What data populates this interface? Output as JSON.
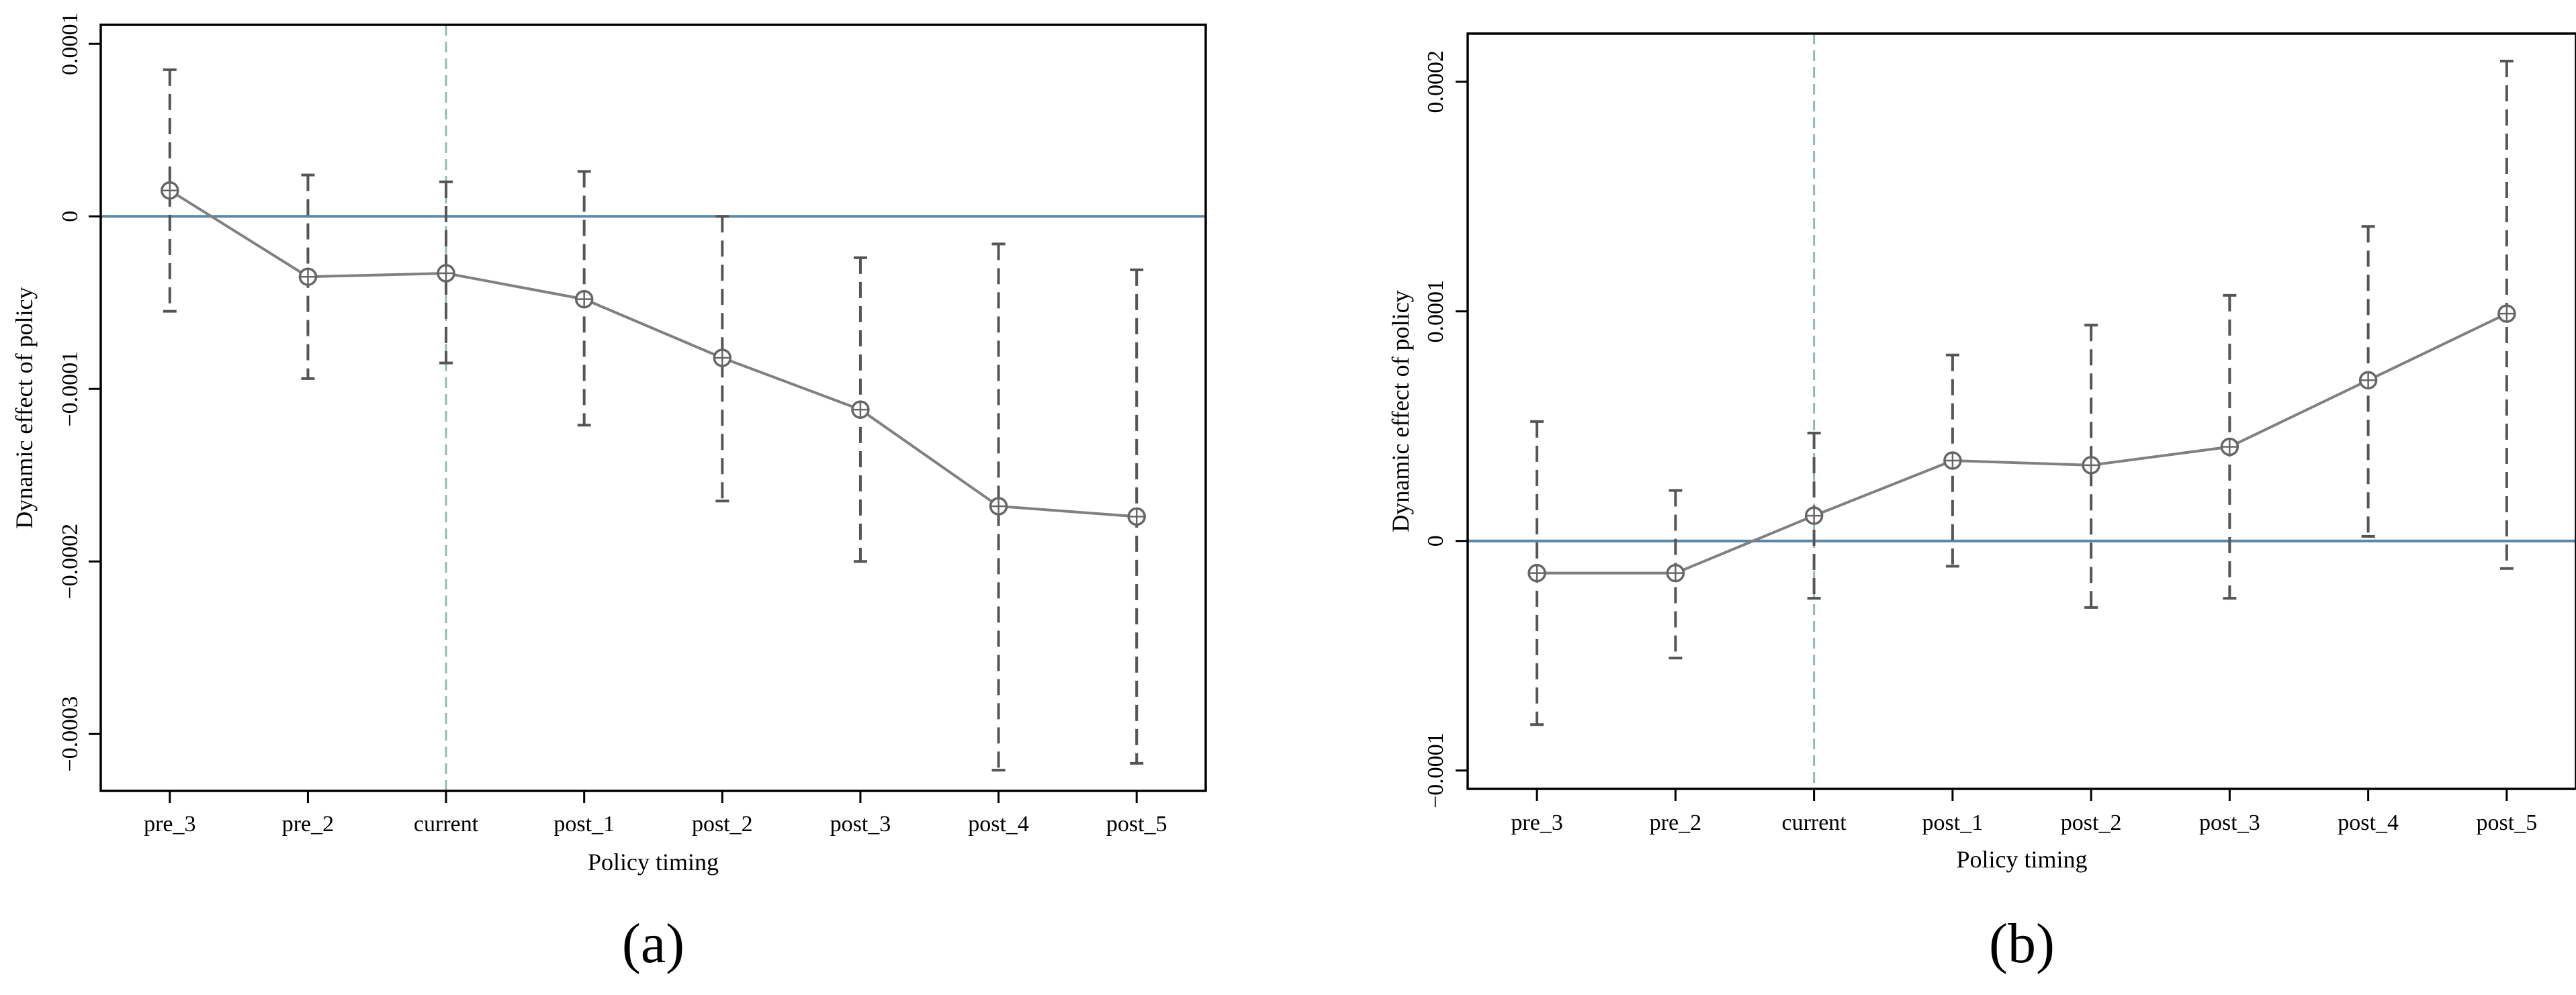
{
  "chart_data": [
    {
      "type": "line",
      "panel_label": "(a)",
      "xlabel": "Policy timing",
      "ylabel": "Dynamic effect of policy",
      "categories": [
        "pre_3",
        "pre_2",
        "current",
        "post_1",
        "post_2",
        "post_3",
        "post_4",
        "post_5"
      ],
      "series": [
        {
          "values": [
            1.5e-05,
            -3.5e-05,
            -3.3e-05,
            -4.8e-05,
            -8.2e-05,
            -0.000112,
            -0.000168,
            -0.000174
          ],
          "ci_lower": [
            -5.5e-05,
            -9.4e-05,
            -8.5e-05,
            -0.000121,
            -0.000165,
            -0.0002,
            -0.000321,
            -0.000317
          ],
          "ci_upper": [
            8.5e-05,
            2.4e-05,
            2e-05,
            2.6e-05,
            0.0,
            -2.4e-05,
            -1.6e-05,
            -3.1e-05
          ]
        }
      ],
      "yticks": [
        0.0001,
        0,
        -0.0001,
        -0.0002,
        -0.0003
      ],
      "ytick_labels": [
        "0.0001",
        "0",
        "−0.0001",
        "−0.0002",
        "−0.0003"
      ],
      "ylim": [
        -0.000333,
        0.000111
      ],
      "reference_line_y": 0,
      "event_line_category": "current",
      "grid": false,
      "colors": {
        "series": "#808080",
        "ci": "#555555",
        "zero_line": "#5b87a8",
        "event_line": "#8fbcad",
        "frame": "#000000"
      }
    },
    {
      "type": "line",
      "panel_label": "(b)",
      "xlabel": "Policy timing",
      "ylabel": "Dynamic effect of policy",
      "categories": [
        "pre_3",
        "pre_2",
        "current",
        "post_1",
        "post_2",
        "post_3",
        "post_4",
        "post_5"
      ],
      "series": [
        {
          "values": [
            -1.4e-05,
            -1.4e-05,
            1.1e-05,
            3.5e-05,
            3.3e-05,
            4.1e-05,
            7e-05,
            9.9e-05
          ],
          "ci_lower": [
            -8e-05,
            -5.1e-05,
            -2.5e-05,
            -1.1e-05,
            -2.9e-05,
            -2.5e-05,
            2e-06,
            -1.2e-05
          ],
          "ci_upper": [
            5.2e-05,
            2.2e-05,
            4.7e-05,
            8.1e-05,
            9.4e-05,
            0.000107,
            0.000137,
            0.000209
          ]
        }
      ],
      "yticks": [
        0.0002,
        0.0001,
        0,
        -0.0001
      ],
      "ytick_labels": [
        "0.0002",
        "0.0001",
        "0",
        "−0.0001"
      ],
      "ylim": [
        -0.000108,
        0.000221
      ],
      "reference_line_y": 0,
      "event_line_category": "current",
      "grid": false,
      "colors": {
        "series": "#808080",
        "ci": "#555555",
        "zero_line": "#5b87a8",
        "event_line": "#8fbcad",
        "frame": "#000000"
      }
    }
  ]
}
